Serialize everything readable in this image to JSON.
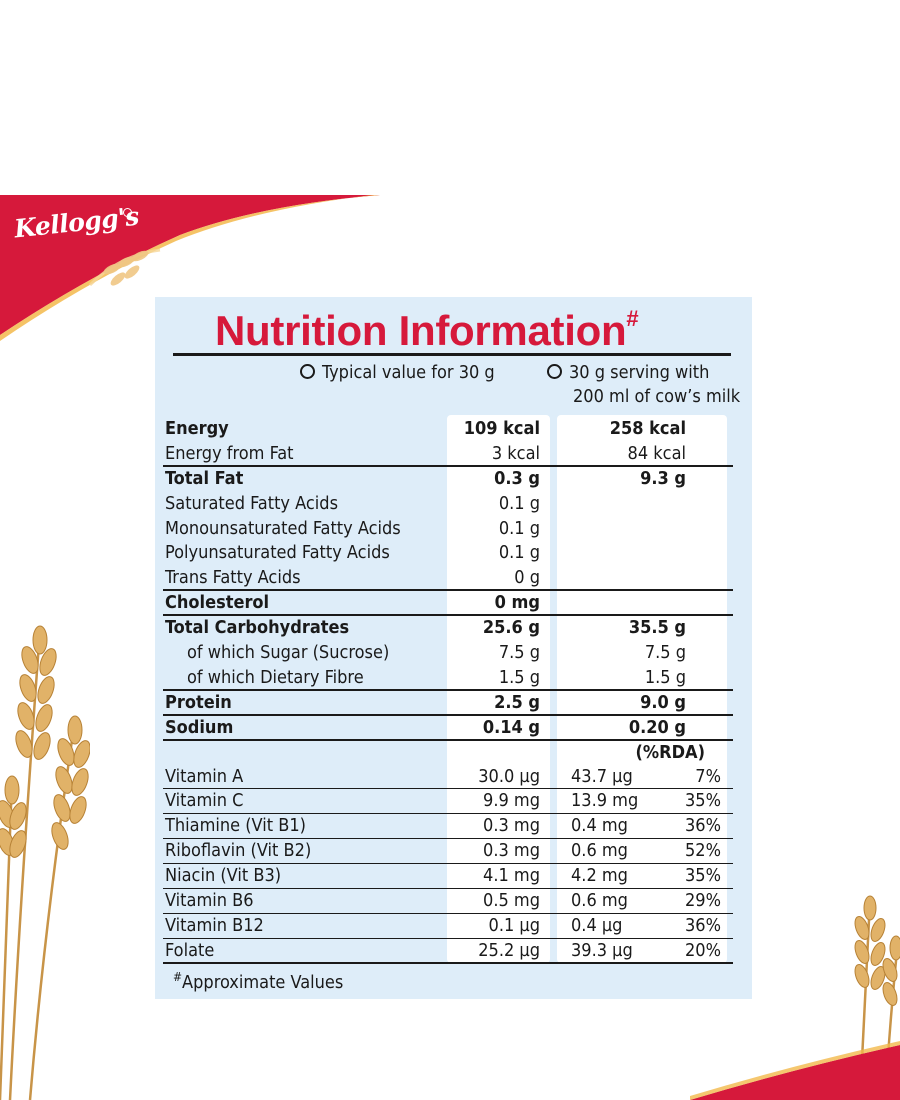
{
  "brand": {
    "logo_text": "Kellogg's"
  },
  "title": {
    "text": "Nutrition Information",
    "mark": "#"
  },
  "columns": {
    "col1": "Typical value for 30 g",
    "col2_line1": "30 g serving with",
    "col2_line2": "200 ml of cow’s milk",
    "rda_header": "(%RDA)"
  },
  "rows": [
    {
      "name": "Energy",
      "v1": "109 kcal",
      "v2": "258 kcal",
      "bold": true
    },
    {
      "name": "Energy from Fat",
      "v1": "3 kcal",
      "v2": "84 kcal"
    },
    {
      "name": "Total Fat",
      "v1": "0.3 g",
      "v2": "9.3 g",
      "bold": true
    },
    {
      "name": "Saturated Fatty Acids",
      "v1": "0.1 g",
      "v2": ""
    },
    {
      "name": "Monounsaturated Fatty Acids",
      "v1": "0.1 g",
      "v2": ""
    },
    {
      "name": "Polyunsaturated Fatty Acids",
      "v1": "0.1 g",
      "v2": ""
    },
    {
      "name": "Trans Fatty Acids",
      "v1": "0 g",
      "v2": ""
    },
    {
      "name": "Cholesterol",
      "v1": "0 mg",
      "v2": "",
      "bold": true
    },
    {
      "name": "Total Carbohydrates",
      "v1": "25.6 g",
      "v2": "35.5 g",
      "bold": true
    },
    {
      "name": "of which Sugar (Sucrose)",
      "v1": "7.5 g",
      "v2": "7.5 g"
    },
    {
      "name": "of which Dietary Fibre",
      "v1": "1.5 g",
      "v2": "1.5 g"
    },
    {
      "name": "Protein",
      "v1": "2.5 g",
      "v2": "9.0 g",
      "bold": true
    },
    {
      "name": "Sodium",
      "v1": "0.14 g",
      "v2": "0.20 g",
      "bold": true
    }
  ],
  "vitamins": [
    {
      "name": "Vitamin A",
      "v1": "30.0 µg",
      "v2": "43.7 µg",
      "rda": "7%"
    },
    {
      "name": "Vitamin C",
      "v1": "9.9 mg",
      "v2": "13.9 mg",
      "rda": "35%"
    },
    {
      "name": "Thiamine (Vit B1)",
      "v1": "0.3 mg",
      "v2": "0.4 mg",
      "rda": "36%"
    },
    {
      "name": "Riboflavin (Vit B2)",
      "v1": "0.3 mg",
      "v2": "0.6 mg",
      "rda": "52%"
    },
    {
      "name": "Niacin (Vit B3)",
      "v1": "4.1 mg",
      "v2": "4.2 mg",
      "rda": "35%"
    },
    {
      "name": "Vitamin B6",
      "v1": "0.5 mg",
      "v2": "0.6 mg",
      "rda": "29%"
    },
    {
      "name": "Vitamin B12",
      "v1": "0.1 µg",
      "v2": "0.4 µg",
      "rda": "36%"
    },
    {
      "name": "Folate",
      "v1": "25.2 µg",
      "v2": "39.3 µg",
      "rda": "20%"
    }
  ],
  "footnote": {
    "mark": "#",
    "text": "Approximate Values"
  },
  "colors": {
    "brand_red": "#d6193b",
    "panel_bg": "#deedf9",
    "column_bg": "#ffffff",
    "wheat": "#d9a85a"
  }
}
